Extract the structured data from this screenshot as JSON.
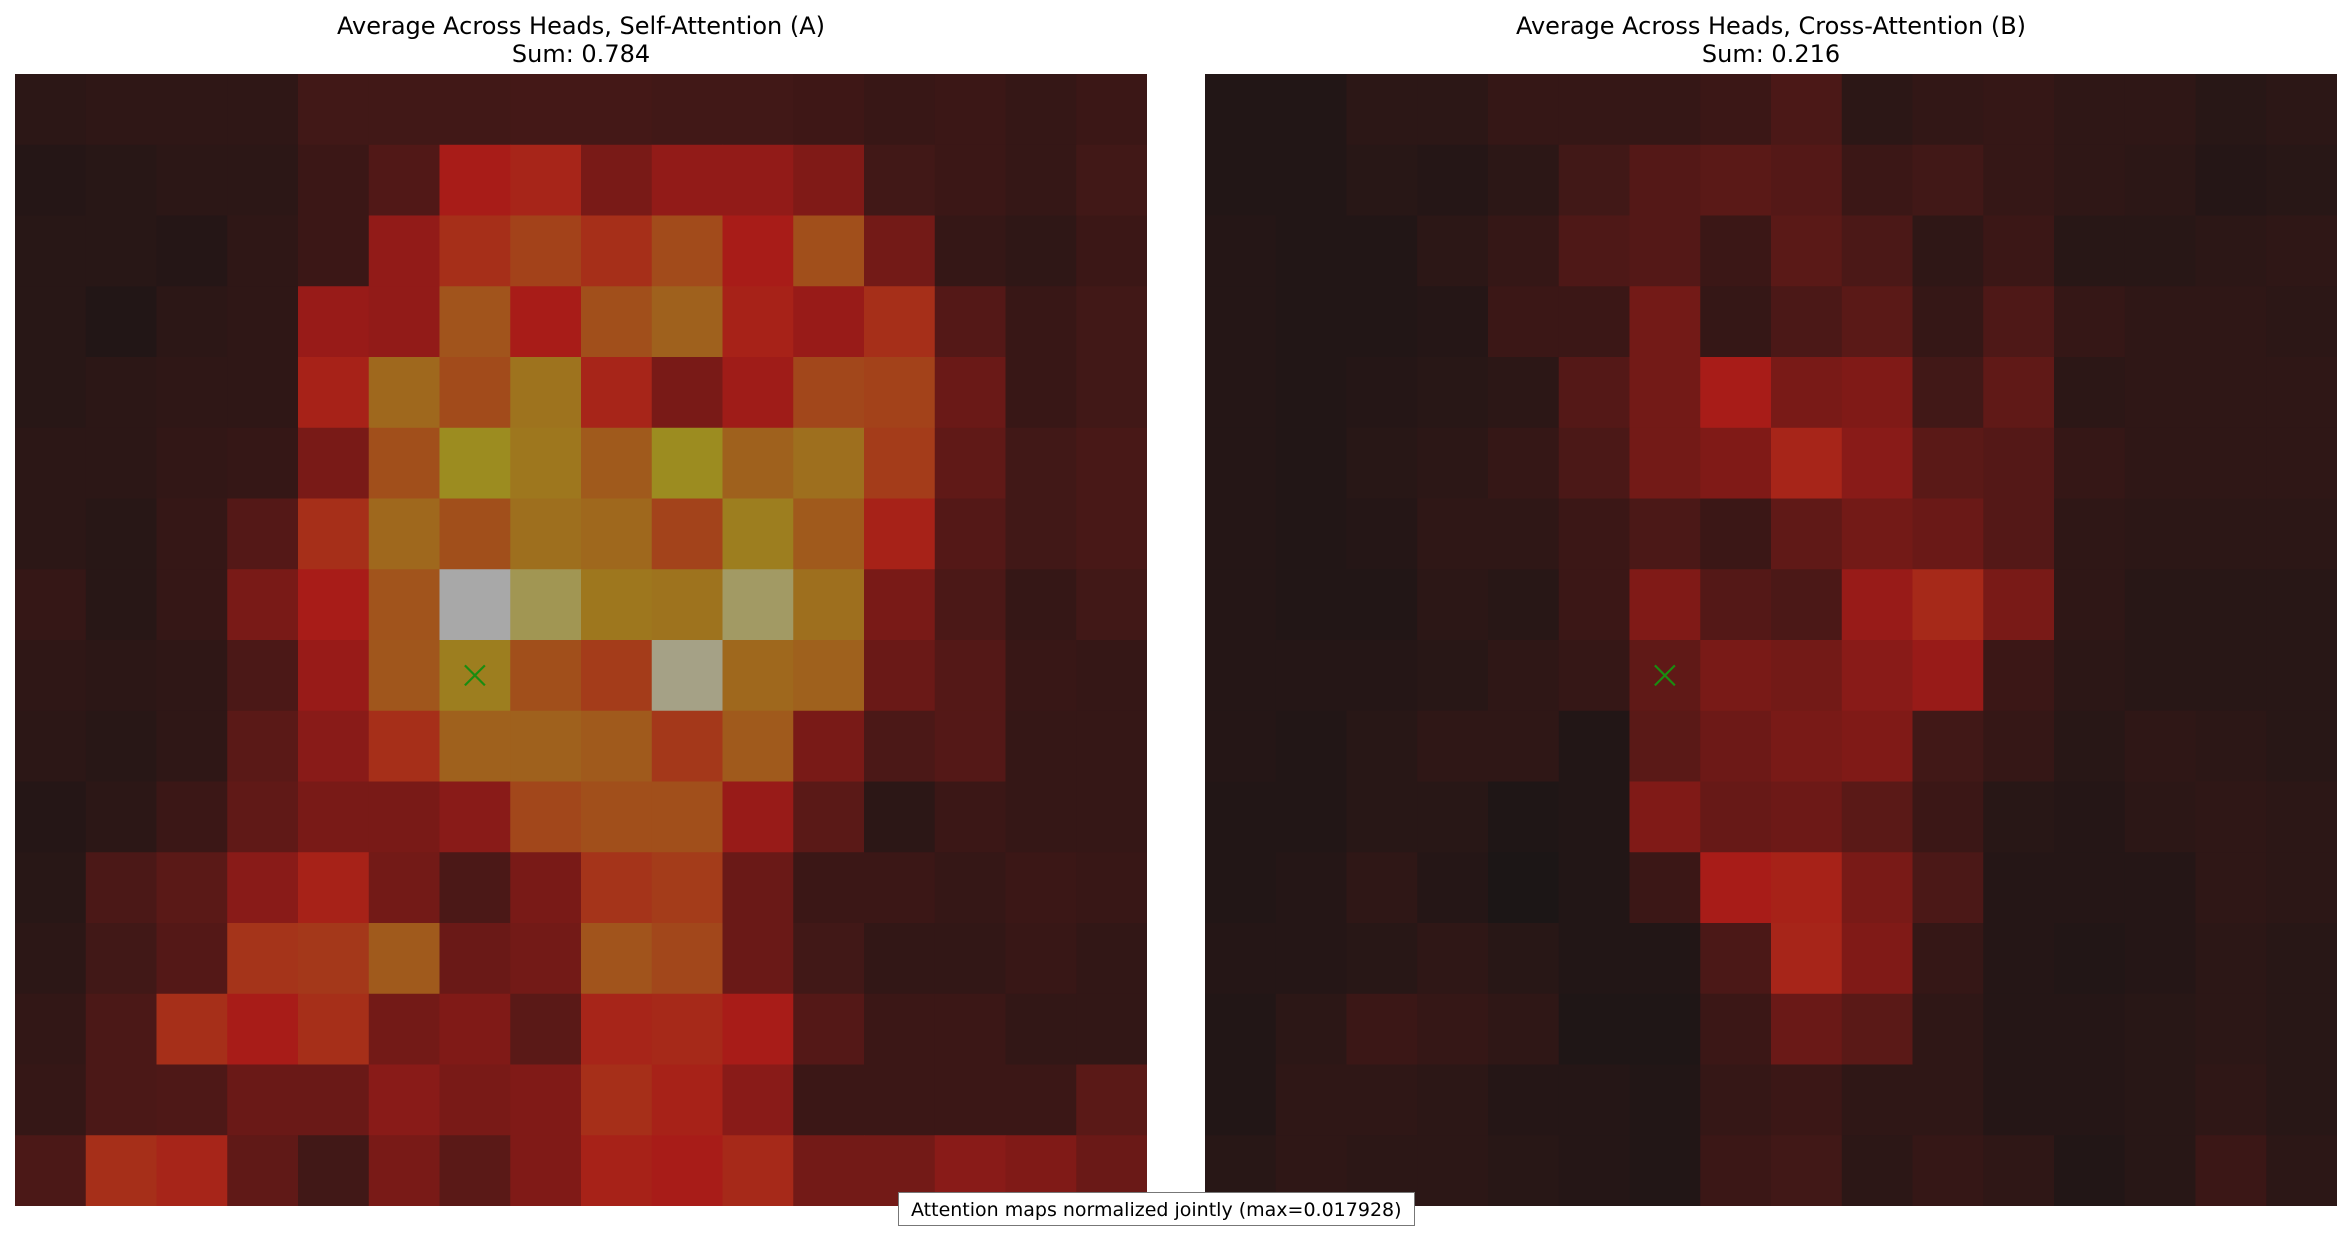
{
  "palette": {
    "background": "#1c1616",
    "red_max": "#a81c18",
    "orange": "#a05a1c",
    "gold": "#9c8c20",
    "peak": "#a8a8a8",
    "marker": "#1a8c10"
  },
  "footnote": "Attention maps normalized jointly (max=0.017928)",
  "chart_data": [
    {
      "type": "heatmap",
      "title": "Average Across Heads, Self-Attention (A)",
      "subtitle": "Sum: 0.784",
      "grid": [
        16,
        16
      ],
      "marker": {
        "row": 8,
        "col": 6,
        "symbol": "x"
      },
      "max_value": 0.017928,
      "values": [
        [
          0.05,
          0.06,
          0.06,
          0.06,
          0.12,
          0.12,
          0.12,
          0.13,
          0.13,
          0.12,
          0.12,
          0.11,
          0.09,
          0.1,
          0.08,
          0.1
        ],
        [
          0.03,
          0.04,
          0.05,
          0.05,
          0.1,
          0.17,
          0.45,
          0.5,
          0.3,
          0.38,
          0.38,
          0.32,
          0.12,
          0.1,
          0.08,
          0.12
        ],
        [
          0.04,
          0.04,
          0.03,
          0.06,
          0.1,
          0.38,
          0.55,
          0.65,
          0.55,
          0.7,
          0.45,
          0.72,
          0.28,
          0.08,
          0.06,
          0.1
        ],
        [
          0.04,
          0.02,
          0.05,
          0.06,
          0.4,
          0.38,
          0.75,
          0.45,
          0.72,
          0.8,
          0.48,
          0.4,
          0.55,
          0.18,
          0.09,
          0.12
        ],
        [
          0.04,
          0.05,
          0.06,
          0.06,
          0.48,
          0.82,
          0.7,
          0.85,
          0.5,
          0.3,
          0.42,
          0.68,
          0.65,
          0.25,
          0.09,
          0.12
        ],
        [
          0.05,
          0.05,
          0.07,
          0.08,
          0.3,
          0.72,
          0.92,
          0.86,
          0.78,
          0.92,
          0.8,
          0.84,
          0.62,
          0.22,
          0.12,
          0.14
        ],
        [
          0.05,
          0.04,
          0.08,
          0.18,
          0.55,
          0.82,
          0.72,
          0.84,
          0.82,
          0.66,
          0.88,
          0.78,
          0.48,
          0.18,
          0.12,
          0.14
        ],
        [
          0.08,
          0.04,
          0.08,
          0.3,
          0.45,
          0.75,
          1.0,
          0.95,
          0.86,
          0.85,
          0.96,
          0.84,
          0.3,
          0.15,
          0.08,
          0.12
        ],
        [
          0.06,
          0.05,
          0.06,
          0.15,
          0.4,
          0.76,
          0.88,
          0.72,
          0.62,
          0.98,
          0.82,
          0.8,
          0.25,
          0.18,
          0.09,
          0.08
        ],
        [
          0.05,
          0.04,
          0.06,
          0.2,
          0.35,
          0.55,
          0.8,
          0.8,
          0.78,
          0.6,
          0.78,
          0.3,
          0.15,
          0.18,
          0.08,
          0.08
        ],
        [
          0.03,
          0.05,
          0.1,
          0.22,
          0.3,
          0.3,
          0.35,
          0.68,
          0.72,
          0.72,
          0.4,
          0.2,
          0.05,
          0.1,
          0.08,
          0.08
        ],
        [
          0.04,
          0.15,
          0.2,
          0.35,
          0.48,
          0.28,
          0.15,
          0.3,
          0.58,
          0.62,
          0.25,
          0.1,
          0.1,
          0.08,
          0.1,
          0.09
        ],
        [
          0.05,
          0.12,
          0.18,
          0.58,
          0.6,
          0.78,
          0.25,
          0.28,
          0.75,
          0.68,
          0.25,
          0.12,
          0.07,
          0.07,
          0.09,
          0.07
        ],
        [
          0.07,
          0.15,
          0.55,
          0.45,
          0.55,
          0.28,
          0.32,
          0.2,
          0.5,
          0.52,
          0.45,
          0.18,
          0.1,
          0.1,
          0.07,
          0.07
        ],
        [
          0.08,
          0.15,
          0.16,
          0.25,
          0.25,
          0.35,
          0.3,
          0.32,
          0.55,
          0.48,
          0.35,
          0.1,
          0.1,
          0.1,
          0.1,
          0.2
        ],
        [
          0.15,
          0.55,
          0.5,
          0.22,
          0.12,
          0.3,
          0.2,
          0.32,
          0.48,
          0.45,
          0.52,
          0.28,
          0.28,
          0.35,
          0.32,
          0.25
        ]
      ]
    },
    {
      "type": "heatmap",
      "title": "Average Across Heads, Cross-Attention (B)",
      "subtitle": "Sum: 0.216",
      "grid": [
        16,
        16
      ],
      "marker": {
        "row": 8,
        "col": 6,
        "symbol": "x"
      },
      "max_value": 0.017928,
      "values": [
        [
          0.02,
          0.02,
          0.05,
          0.05,
          0.08,
          0.08,
          0.08,
          0.1,
          0.15,
          0.05,
          0.07,
          0.08,
          0.06,
          0.06,
          0.04,
          0.05
        ],
        [
          0.02,
          0.02,
          0.04,
          0.03,
          0.05,
          0.12,
          0.18,
          0.2,
          0.18,
          0.1,
          0.12,
          0.08,
          0.06,
          0.05,
          0.03,
          0.04
        ],
        [
          0.03,
          0.02,
          0.02,
          0.05,
          0.08,
          0.16,
          0.18,
          0.1,
          0.2,
          0.15,
          0.06,
          0.1,
          0.04,
          0.04,
          0.05,
          0.06
        ],
        [
          0.03,
          0.02,
          0.02,
          0.03,
          0.1,
          0.1,
          0.28,
          0.08,
          0.15,
          0.2,
          0.08,
          0.16,
          0.08,
          0.06,
          0.06,
          0.05
        ],
        [
          0.03,
          0.02,
          0.03,
          0.04,
          0.05,
          0.18,
          0.28,
          0.45,
          0.3,
          0.32,
          0.12,
          0.22,
          0.05,
          0.06,
          0.06,
          0.06
        ],
        [
          0.03,
          0.02,
          0.04,
          0.05,
          0.08,
          0.15,
          0.28,
          0.32,
          0.5,
          0.35,
          0.2,
          0.18,
          0.08,
          0.06,
          0.06,
          0.06
        ],
        [
          0.03,
          0.02,
          0.03,
          0.06,
          0.06,
          0.1,
          0.15,
          0.1,
          0.22,
          0.28,
          0.25,
          0.18,
          0.06,
          0.05,
          0.05,
          0.05
        ],
        [
          0.03,
          0.02,
          0.02,
          0.05,
          0.04,
          0.1,
          0.32,
          0.18,
          0.15,
          0.4,
          0.52,
          0.3,
          0.06,
          0.04,
          0.04,
          0.04
        ],
        [
          0.03,
          0.03,
          0.03,
          0.04,
          0.06,
          0.08,
          0.22,
          0.3,
          0.28,
          0.35,
          0.4,
          0.1,
          0.05,
          0.04,
          0.04,
          0.04
        ],
        [
          0.03,
          0.02,
          0.04,
          0.06,
          0.06,
          0.02,
          0.2,
          0.26,
          0.3,
          0.32,
          0.12,
          0.08,
          0.04,
          0.06,
          0.05,
          0.04
        ],
        [
          0.02,
          0.02,
          0.04,
          0.04,
          0.01,
          0.02,
          0.32,
          0.24,
          0.26,
          0.2,
          0.1,
          0.04,
          0.03,
          0.05,
          0.06,
          0.05
        ],
        [
          0.02,
          0.03,
          0.06,
          0.03,
          0.0,
          0.02,
          0.1,
          0.45,
          0.48,
          0.3,
          0.15,
          0.03,
          0.03,
          0.03,
          0.06,
          0.05
        ],
        [
          0.03,
          0.03,
          0.04,
          0.06,
          0.04,
          0.02,
          0.02,
          0.15,
          0.5,
          0.32,
          0.08,
          0.03,
          0.02,
          0.03,
          0.05,
          0.04
        ],
        [
          0.02,
          0.05,
          0.1,
          0.08,
          0.06,
          0.01,
          0.01,
          0.1,
          0.25,
          0.2,
          0.06,
          0.03,
          0.03,
          0.04,
          0.05,
          0.04
        ],
        [
          0.02,
          0.06,
          0.06,
          0.05,
          0.03,
          0.03,
          0.02,
          0.08,
          0.1,
          0.06,
          0.06,
          0.03,
          0.03,
          0.04,
          0.06,
          0.04
        ],
        [
          0.04,
          0.06,
          0.05,
          0.05,
          0.04,
          0.03,
          0.02,
          0.1,
          0.12,
          0.05,
          0.08,
          0.06,
          0.02,
          0.04,
          0.1,
          0.05
        ]
      ]
    }
  ]
}
